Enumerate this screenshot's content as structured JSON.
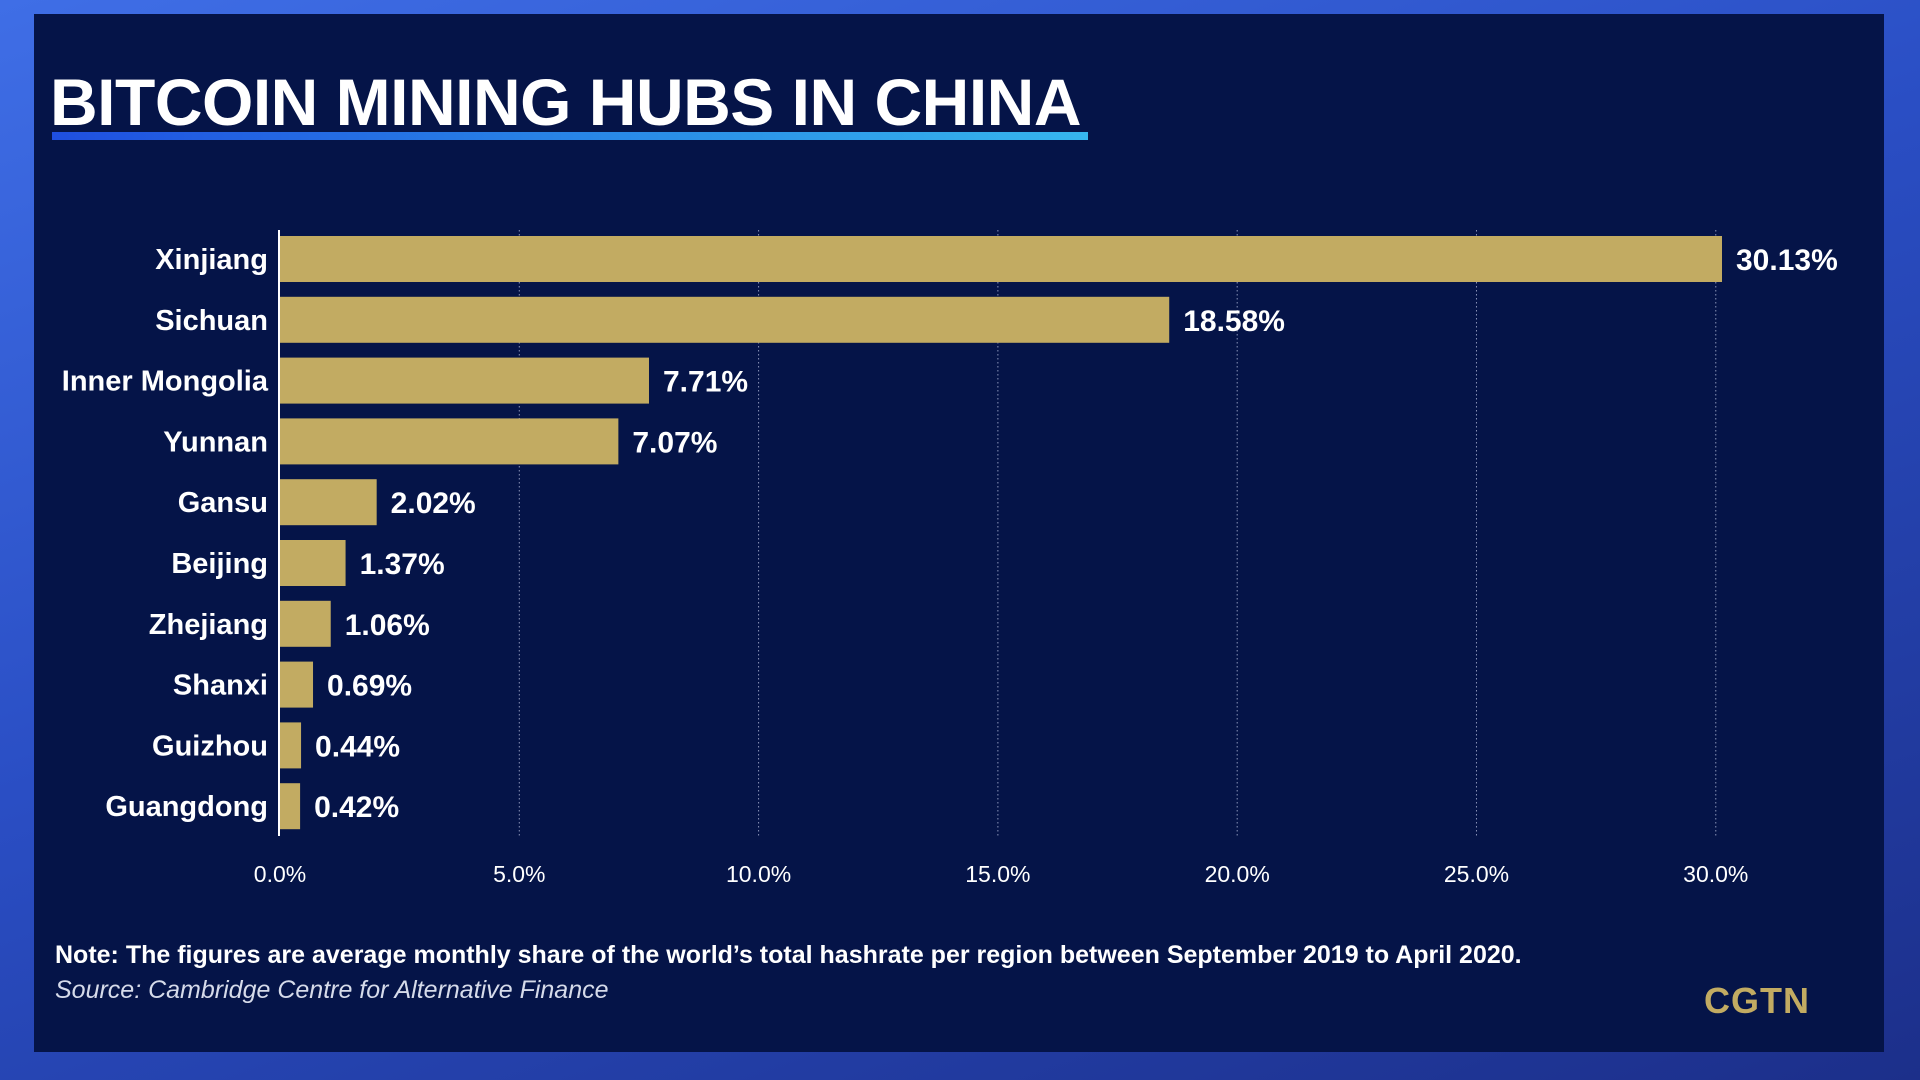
{
  "title": "BITCOIN MINING HUBS IN CHINA",
  "note": "Note: The figures are average monthly share of the world’s total hashrate per region between September 2019 to April 2020.",
  "source": "Source: Cambridge Centre for Alternative Finance",
  "logo": "CGTN",
  "colors": {
    "background": "#051448",
    "bar": "#c2ab62",
    "text": "#ffffff",
    "title_rule_start": "#1f4fe0",
    "title_rule_end": "#36b6ee"
  },
  "chart_data": {
    "type": "bar",
    "orientation": "horizontal",
    "categories": [
      "Xinjiang",
      "Sichuan",
      "Inner Mongolia",
      "Yunnan",
      "Gansu",
      "Beijing",
      "Zhejiang",
      "Shanxi",
      "Guizhou",
      "Guangdong"
    ],
    "values": [
      30.13,
      18.58,
      7.71,
      7.07,
      2.02,
      1.37,
      1.06,
      0.69,
      0.44,
      0.42
    ],
    "value_labels": [
      "30.13%",
      "18.58%",
      "7.71%",
      "7.07%",
      "2.02%",
      "1.37%",
      "1.06%",
      "0.69%",
      "0.44%",
      "0.42%"
    ],
    "xticks": [
      0,
      5,
      10,
      15,
      20,
      25,
      30
    ],
    "xtick_labels": [
      "0.0%",
      "5.0%",
      "10.0%",
      "15.0%",
      "20.0%",
      "25.0%",
      "30.0%"
    ],
    "xlim": [
      0,
      30.13
    ],
    "grid": "vertical dotted",
    "legend": "none"
  }
}
